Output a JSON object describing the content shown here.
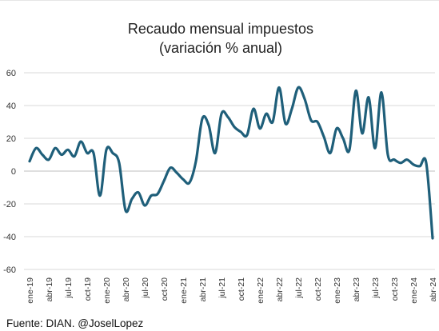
{
  "chart_data": {
    "type": "line",
    "title": [
      "Recaudo mensual impuestos",
      "(variación % anual)"
    ],
    "xlabel": "",
    "ylabel": "",
    "ylim": [
      -60,
      60
    ],
    "yticks": [
      -60,
      -40,
      -20,
      0,
      20,
      40,
      60
    ],
    "grid": true,
    "legend": "none",
    "x_tick_labels": [
      "ene-19",
      "abr-19",
      "jul-19",
      "oct-19",
      "ene-20",
      "abr-20",
      "jul-20",
      "oct-20",
      "ene-21",
      "abr-21",
      "jul-21",
      "oct-21",
      "ene-22",
      "abr-22",
      "jul-22",
      "oct-22",
      "ene-23",
      "abr-23",
      "jul-23",
      "oct-23",
      "ene-24",
      "abr-24"
    ],
    "x": [
      "ene-19",
      "feb-19",
      "mar-19",
      "abr-19",
      "may-19",
      "jun-19",
      "jul-19",
      "ago-19",
      "sep-19",
      "oct-19",
      "nov-19",
      "dic-19",
      "ene-20",
      "feb-20",
      "mar-20",
      "abr-20",
      "may-20",
      "jun-20",
      "jul-20",
      "ago-20",
      "sep-20",
      "oct-20",
      "nov-20",
      "dic-20",
      "ene-21",
      "feb-21",
      "mar-21",
      "abr-21",
      "may-21",
      "jun-21",
      "jul-21",
      "ago-21",
      "sep-21",
      "oct-21",
      "nov-21",
      "dic-21",
      "ene-22",
      "feb-22",
      "mar-22",
      "abr-22",
      "may-22",
      "jun-22",
      "jul-22",
      "ago-22",
      "sep-22",
      "oct-22",
      "nov-22",
      "dic-22",
      "ene-23",
      "feb-23",
      "mar-23",
      "abr-23",
      "may-23",
      "jun-23",
      "jul-23",
      "ago-23",
      "sep-23",
      "oct-23",
      "nov-23",
      "dic-23",
      "ene-24",
      "feb-24",
      "mar-24",
      "abr-24"
    ],
    "series": [
      {
        "color": "#1f5f7a",
        "values": [
          6,
          14,
          10,
          7,
          14,
          10,
          13,
          9,
          18,
          11,
          11,
          -15,
          13,
          11,
          5,
          -24,
          -17,
          -13,
          -21,
          -15,
          -14,
          -6,
          2,
          -1,
          -5,
          -7,
          6,
          32,
          28,
          11,
          35,
          33,
          27,
          24,
          22,
          38,
          26,
          35,
          30,
          51,
          29,
          38,
          51,
          44,
          31,
          30,
          21,
          11,
          26,
          20,
          13,
          49,
          23,
          45,
          14,
          48,
          10,
          7,
          5,
          7,
          4,
          3,
          5,
          -41
        ]
      }
    ]
  },
  "source": "Fuente: DIAN. @JoselLopez"
}
